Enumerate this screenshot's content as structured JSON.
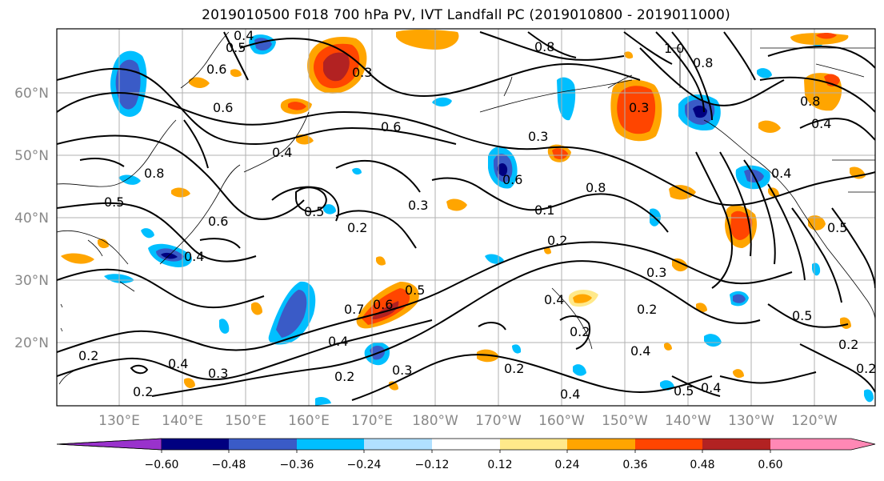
{
  "title": "2019010500 F018 700 hPa PV, IVT Landfall PC (2019010800 - 2019011000)",
  "lat_labels": [
    "60°N",
    "50°N",
    "40°N",
    "30°N",
    "20°N"
  ],
  "lon_labels": [
    "130°E",
    "140°E",
    "150°E",
    "160°E",
    "170°E",
    "180°W",
    "170°W",
    "160°W",
    "150°W",
    "140°W",
    "130°W",
    "120°W"
  ],
  "colorbar": {
    "ticks": [
      "−0.60",
      "−0.48",
      "−0.36",
      "−0.24",
      "−0.12",
      "0.12",
      "0.24",
      "0.36",
      "0.48",
      "0.60"
    ],
    "colors": [
      "#9932cc",
      "#000080",
      "#3a5bc7",
      "#00bfff",
      "#b0e0ff",
      "#ffffff",
      "#ffe98a",
      "#ffa500",
      "#ff4500",
      "#b22222",
      "#ff88b5"
    ]
  },
  "contour_labels": [
    "0.4",
    "0.5",
    "0.6",
    "0.3",
    "0.6",
    "0.6",
    "0.8",
    "0.5",
    "0.4",
    "0.6",
    "0.3",
    "0.2",
    "0.4",
    "0.5",
    "0.7",
    "0.6",
    "0.4",
    "0.2",
    "0.3",
    "0.2",
    "0.4",
    "0.3",
    "0.2",
    "0.5",
    "0.8",
    "0.2",
    "0.4",
    "0.3",
    "0.5",
    "0.2",
    "0.8",
    "0.4",
    "0.2",
    "0.3",
    "0.4",
    "0.5",
    "0.5",
    "0.4",
    "0.3",
    "0.2",
    "0.2",
    "0.4",
    "0.1",
    "0.2",
    "0.6",
    "0.8",
    "1.0",
    "0.8",
    "0.4"
  ],
  "legend_colors": {
    "neg_strong": "#3a5bc7",
    "neg_mid": "#00bfff",
    "neg_core": "#000080",
    "pos_weak": "#ffe98a",
    "pos_mid": "#ffa500",
    "pos_strong": "#ff4500",
    "pos_core": "#b22222"
  }
}
